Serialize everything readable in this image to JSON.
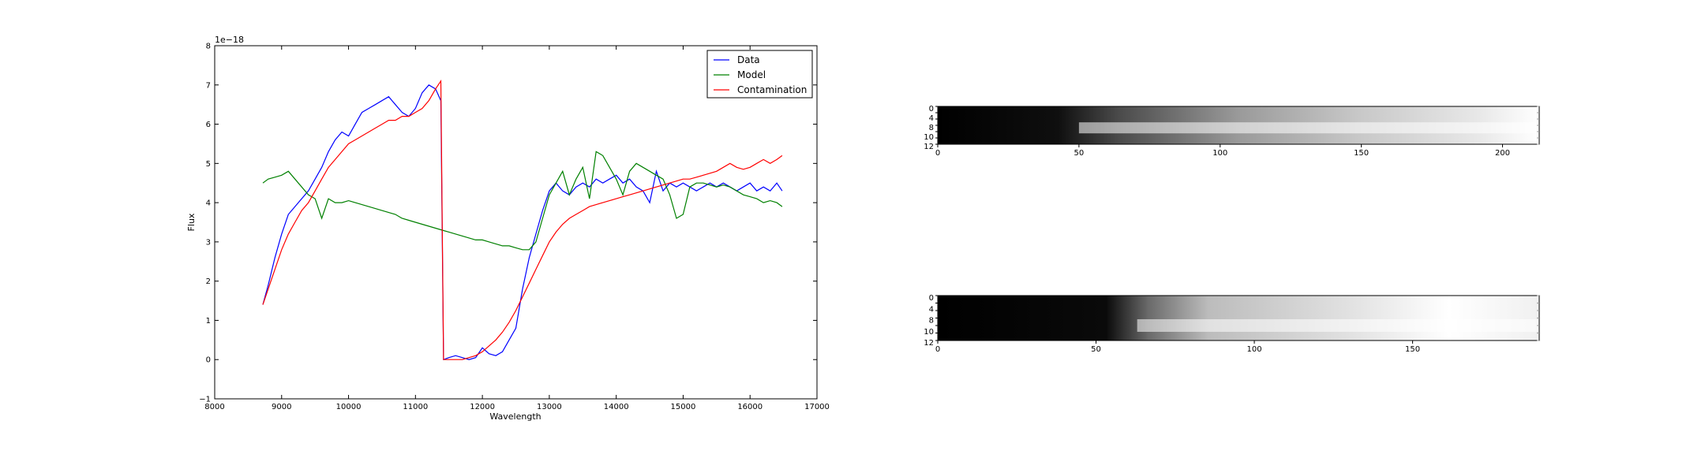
{
  "chart_data": [
    {
      "type": "line",
      "xlabel": "Wavelength",
      "ylabel": "Flux",
      "offset_label": "1e−18",
      "xlim": [
        8000,
        17000
      ],
      "ylim": [
        -1,
        8
      ],
      "xticks": [
        8000,
        9000,
        10000,
        11000,
        12000,
        13000,
        14000,
        15000,
        16000,
        17000
      ],
      "yticks": [
        -1,
        0,
        1,
        2,
        3,
        4,
        5,
        6,
        7,
        8
      ],
      "ytick_labels": [
        "−1",
        "0",
        "1",
        "2",
        "3",
        "4",
        "5",
        "6",
        "7",
        "8"
      ],
      "grid": false,
      "legend_position": "top-right",
      "series": [
        {
          "name": "Data",
          "color": "#0000ff",
          "x": [
            8720,
            8800,
            8900,
            9000,
            9100,
            9200,
            9300,
            9400,
            9500,
            9600,
            9700,
            9800,
            9900,
            10000,
            10100,
            10200,
            10300,
            10400,
            10500,
            10600,
            10700,
            10800,
            10900,
            11000,
            11100,
            11200,
            11300,
            11380,
            11420,
            11500,
            11600,
            11700,
            11800,
            11900,
            12000,
            12100,
            12200,
            12300,
            12400,
            12500,
            12600,
            12700,
            12800,
            12900,
            13000,
            13100,
            13200,
            13300,
            13400,
            13500,
            13600,
            13700,
            13800,
            13900,
            14000,
            14100,
            14200,
            14300,
            14400,
            14500,
            14600,
            14700,
            14800,
            14900,
            15000,
            15100,
            15200,
            15300,
            15400,
            15500,
            15600,
            15700,
            15800,
            15900,
            16000,
            16100,
            16200,
            16300,
            16400,
            16480
          ],
          "y": [
            1.4,
            1.9,
            2.6,
            3.2,
            3.7,
            3.9,
            4.1,
            4.3,
            4.6,
            4.9,
            5.3,
            5.6,
            5.8,
            5.7,
            6.0,
            6.3,
            6.4,
            6.5,
            6.6,
            6.7,
            6.5,
            6.3,
            6.2,
            6.4,
            6.8,
            7.0,
            6.9,
            6.6,
            0.0,
            0.05,
            0.1,
            0.05,
            0.0,
            0.05,
            0.3,
            0.15,
            0.1,
            0.2,
            0.5,
            0.8,
            1.8,
            2.6,
            3.2,
            3.8,
            4.3,
            4.5,
            4.3,
            4.2,
            4.4,
            4.5,
            4.4,
            4.6,
            4.5,
            4.6,
            4.7,
            4.5,
            4.6,
            4.4,
            4.3,
            4.0,
            4.8,
            4.3,
            4.5,
            4.4,
            4.5,
            4.4,
            4.3,
            4.4,
            4.5,
            4.4,
            4.5,
            4.4,
            4.3,
            4.4,
            4.5,
            4.3,
            4.4,
            4.3,
            4.5,
            4.3
          ]
        },
        {
          "name": "Model",
          "color": "#008000",
          "x": [
            8720,
            8800,
            8900,
            9000,
            9100,
            9200,
            9300,
            9400,
            9500,
            9600,
            9700,
            9800,
            9900,
            10000,
            10100,
            10200,
            10300,
            10400,
            10500,
            10600,
            10700,
            10800,
            10900,
            11000,
            11100,
            11200,
            11300,
            11400,
            11500,
            11600,
            11700,
            11800,
            11900,
            12000,
            12100,
            12200,
            12300,
            12400,
            12500,
            12600,
            12700,
            12800,
            12900,
            13000,
            13100,
            13200,
            13300,
            13400,
            13500,
            13600,
            13700,
            13800,
            13900,
            14000,
            14100,
            14200,
            14300,
            14400,
            14500,
            14600,
            14700,
            14800,
            14900,
            15000,
            15100,
            15200,
            15300,
            15400,
            15500,
            15600,
            15700,
            15800,
            15900,
            16000,
            16100,
            16200,
            16300,
            16400,
            16480
          ],
          "y": [
            4.5,
            4.6,
            4.65,
            4.7,
            4.8,
            4.6,
            4.4,
            4.2,
            4.1,
            3.6,
            4.1,
            4.0,
            4.0,
            4.05,
            4.0,
            3.95,
            3.9,
            3.85,
            3.8,
            3.75,
            3.7,
            3.6,
            3.55,
            3.5,
            3.45,
            3.4,
            3.35,
            3.3,
            3.25,
            3.2,
            3.15,
            3.1,
            3.05,
            3.05,
            3.0,
            2.95,
            2.9,
            2.9,
            2.85,
            2.8,
            2.8,
            3.0,
            3.6,
            4.2,
            4.5,
            4.8,
            4.2,
            4.6,
            4.9,
            4.1,
            5.3,
            5.2,
            4.9,
            4.6,
            4.2,
            4.8,
            5.0,
            4.9,
            4.8,
            4.7,
            4.6,
            4.2,
            3.6,
            3.7,
            4.4,
            4.5,
            4.5,
            4.45,
            4.4,
            4.45,
            4.4,
            4.3,
            4.2,
            4.15,
            4.1,
            4.0,
            4.05,
            4.0,
            3.9
          ]
        },
        {
          "name": "Contamination",
          "color": "#ff0000",
          "x": [
            8720,
            8800,
            8900,
            9000,
            9100,
            9200,
            9300,
            9400,
            9500,
            9600,
            9700,
            9800,
            9900,
            10000,
            10100,
            10200,
            10300,
            10400,
            10500,
            10600,
            10700,
            10800,
            10900,
            11000,
            11100,
            11200,
            11300,
            11380,
            11420,
            11500,
            11600,
            11700,
            11800,
            11900,
            12000,
            12100,
            12200,
            12300,
            12400,
            12500,
            12600,
            12700,
            12800,
            12900,
            13000,
            13100,
            13200,
            13300,
            13400,
            13500,
            13600,
            13700,
            13800,
            13900,
            14000,
            14100,
            14200,
            14300,
            14400,
            14500,
            14600,
            14700,
            14800,
            14900,
            15000,
            15100,
            15200,
            15300,
            15400,
            15500,
            15600,
            15700,
            15800,
            15900,
            16000,
            16100,
            16200,
            16300,
            16400,
            16480
          ],
          "y": [
            1.4,
            1.8,
            2.3,
            2.8,
            3.2,
            3.5,
            3.8,
            4.0,
            4.3,
            4.6,
            4.9,
            5.1,
            5.3,
            5.5,
            5.6,
            5.7,
            5.8,
            5.9,
            6.0,
            6.1,
            6.1,
            6.2,
            6.2,
            6.3,
            6.4,
            6.6,
            6.9,
            7.1,
            0.0,
            0.0,
            0.0,
            0.0,
            0.05,
            0.1,
            0.2,
            0.35,
            0.5,
            0.7,
            0.95,
            1.25,
            1.6,
            1.95,
            2.3,
            2.65,
            3.0,
            3.25,
            3.45,
            3.6,
            3.7,
            3.8,
            3.9,
            3.95,
            4.0,
            4.05,
            4.1,
            4.15,
            4.2,
            4.25,
            4.3,
            4.35,
            4.4,
            4.45,
            4.5,
            4.55,
            4.6,
            4.6,
            4.65,
            4.7,
            4.75,
            4.8,
            4.9,
            5.0,
            4.9,
            4.85,
            4.9,
            5.0,
            5.1,
            5.0,
            5.1,
            5.2
          ]
        }
      ]
    },
    {
      "type": "heatmap",
      "colormap": "gray",
      "xlim": [
        0,
        213
      ],
      "ylim": [
        12,
        0
      ],
      "xticks": [
        0,
        50,
        100,
        150,
        200
      ],
      "yticks": [
        0,
        2,
        4,
        6,
        8,
        10,
        12
      ],
      "visible_ytick_labels": [
        "0",
        "4",
        "8",
        "10",
        "12"
      ],
      "trace": {
        "start": 50,
        "peak_row": 6.8,
        "max_at": 213
      }
    },
    {
      "type": "heatmap",
      "colormap": "gray",
      "xlim": [
        0,
        190
      ],
      "ylim": [
        12,
        0
      ],
      "xticks": [
        0,
        50,
        100,
        150
      ],
      "yticks": [
        0,
        2,
        4,
        6,
        8,
        10,
        12
      ],
      "visible_ytick_labels": [
        "0",
        "4",
        "8",
        "10",
        "12"
      ],
      "trace": {
        "start": 63,
        "peak_row": 8.0,
        "max_at": 150
      }
    }
  ]
}
